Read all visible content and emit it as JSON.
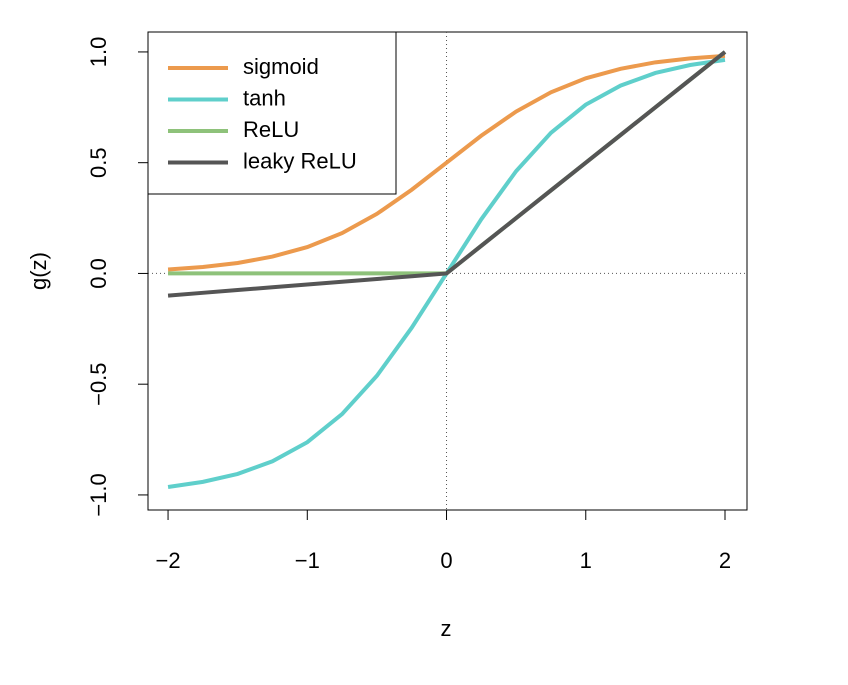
{
  "chart_data": {
    "type": "line",
    "x_label": "z",
    "y_label": "g(z)",
    "x": [
      -2,
      -1.75,
      -1.5,
      -1.25,
      -1,
      -0.75,
      -0.5,
      -0.25,
      0,
      0.25,
      0.5,
      0.75,
      1,
      1.25,
      1.5,
      1.75,
      2
    ],
    "series": [
      {
        "name": "sigmoid",
        "color": "#ec9a4d",
        "values": [
          0.018,
          0.029,
          0.047,
          0.076,
          0.119,
          0.182,
          0.269,
          0.378,
          0.5,
          0.622,
          0.731,
          0.818,
          0.881,
          0.924,
          0.953,
          0.971,
          0.982
        ]
      },
      {
        "name": "tanh",
        "color": "#5fcfcb",
        "values": [
          -0.964,
          -0.941,
          -0.905,
          -0.848,
          -0.762,
          -0.635,
          -0.462,
          -0.245,
          0,
          0.245,
          0.462,
          0.635,
          0.762,
          0.848,
          0.905,
          0.941,
          0.964
        ]
      },
      {
        "name": "ReLU",
        "color": "#8ec27a",
        "values": [
          0,
          0,
          0,
          0,
          0,
          0,
          0,
          0,
          0,
          0.125,
          0.25,
          0.375,
          0.5,
          0.625,
          0.75,
          0.875,
          1
        ]
      },
      {
        "name": "leaky ReLU",
        "color": "#555555",
        "values": [
          -0.1,
          -0.0875,
          -0.075,
          -0.0625,
          -0.05,
          -0.0375,
          -0.025,
          -0.0125,
          0,
          0.125,
          0.25,
          0.375,
          0.5,
          0.625,
          0.75,
          0.875,
          1
        ]
      }
    ],
    "xlim": [
      -2.144,
      2.158
    ],
    "ylim": [
      -1.068,
      1.09
    ],
    "xticks": [
      {
        "value": -2,
        "label": "−2"
      },
      {
        "value": -1,
        "label": "−1"
      },
      0,
      1,
      2
    ],
    "yticks": [
      {
        "value": -1,
        "label": "−1.0"
      },
      {
        "value": -0.5,
        "label": "−0.5"
      },
      {
        "value": 0,
        "label": "0.0"
      },
      {
        "value": 0.5,
        "label": "0.5"
      },
      {
        "value": 1,
        "label": "1.0"
      }
    ],
    "reference_lines": {
      "x": 0,
      "y": 0
    },
    "legend": "top-left",
    "grid": false
  }
}
